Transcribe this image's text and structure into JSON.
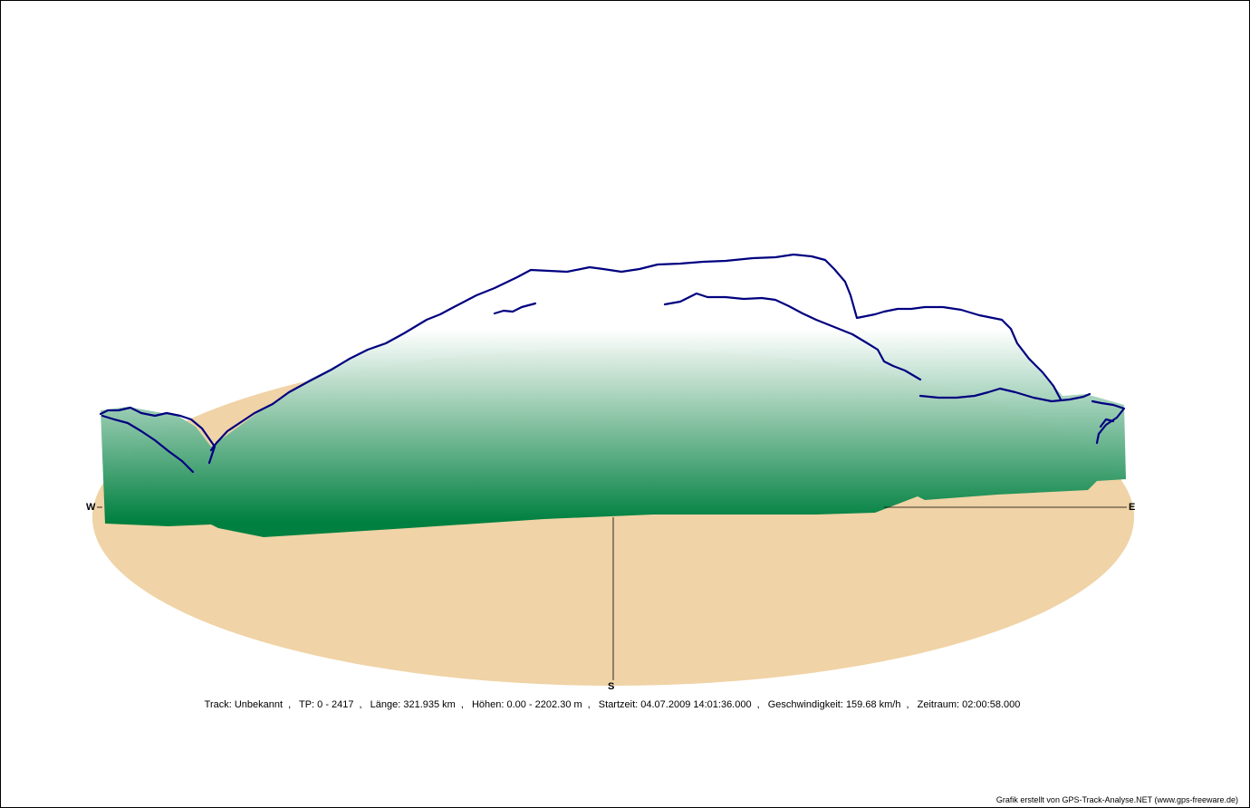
{
  "colors": {
    "ground": "#f0d3a6",
    "wall_top": "#ffffff",
    "wall_bottom": "#008040",
    "track": "#000080",
    "axis": "#000000"
  },
  "compass": {
    "west": "W",
    "east": "E",
    "south": "S"
  },
  "info": {
    "track": "Track: Unbekannt",
    "tp": "TP: 0 - 2417",
    "length": "Länge: 321.935 km",
    "heights": "Höhen: 0.00 - 2202.30 m",
    "start": "Startzeit: 04.07.2009 14:01:36.000",
    "speed": "Geschwindigkeit: 159.68 km/h",
    "duration": "Zeitraum: 02:00:58.000"
  },
  "credit": "Grafik erstellt von GPS-Track-Analyse.NET (www.gps-freeware.de)",
  "chart_data": {
    "type": "line",
    "view": "3d-elevation-profile",
    "track_points": [
      0,
      2417
    ],
    "elevation_range_m": [
      0.0,
      2202.3
    ],
    "length_km": 321.935,
    "directions": [
      "W",
      "E",
      "S"
    ]
  }
}
